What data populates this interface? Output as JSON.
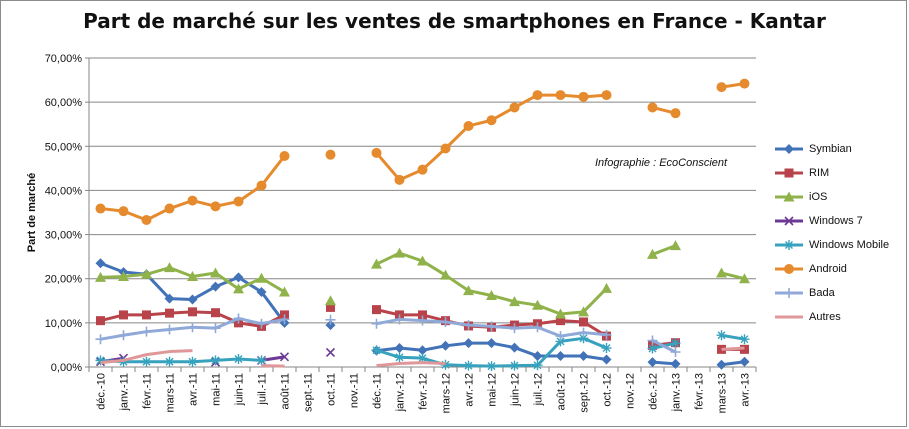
{
  "chart_data": {
    "type": "line",
    "title": "Part de marché sur les ventes de smartphones en France - Kantar",
    "xlabel": "",
    "ylabel": "Part de marché",
    "annotation": "Infographie : EcoConscient",
    "ylim": [
      0,
      70
    ],
    "yticks": [
      "0,00%",
      "10,00%",
      "20,00%",
      "30,00%",
      "40,00%",
      "50,00%",
      "60,00%",
      "70,00%"
    ],
    "grid": true,
    "legend_position": "right",
    "categories": [
      "déc.-10",
      "janv.-11",
      "févr.-11",
      "mars-11",
      "avr.-11",
      "mai-11",
      "juin-11",
      "juil.-11",
      "août-11",
      "sept.-11",
      "oct.-11",
      "nov.-11",
      "déc.-11",
      "janv.-12",
      "févr.-12",
      "mars-12",
      "avr.-12",
      "mai-12",
      "juin-12",
      "juil.-12",
      "août-12",
      "sept.-12",
      "oct.-12",
      "nov.-12",
      "déc.-12",
      "janv.-13",
      "févr.-13",
      "mars-13",
      "avr.-13"
    ],
    "series": [
      {
        "name": "Symbian",
        "color": "#4272b8",
        "marker": "diamond",
        "values": [
          23.5,
          21.5,
          21,
          15.5,
          15.3,
          18.2,
          20.3,
          17,
          10,
          null,
          9.5,
          null,
          3.7,
          4.3,
          3.8,
          4.8,
          5.4,
          5.4,
          4.4,
          2.5,
          2.5,
          2.5,
          1.7,
          null,
          1.1,
          0.7,
          null,
          0.5,
          1.2
        ]
      },
      {
        "name": "RIM",
        "color": "#b8434a",
        "marker": "square",
        "values": [
          10.5,
          11.8,
          11.8,
          12.2,
          12.5,
          12.3,
          10,
          9.2,
          11.8,
          null,
          13.5,
          null,
          13,
          11.8,
          11.8,
          10.5,
          9.3,
          9,
          9.5,
          9.8,
          10.5,
          10.2,
          7,
          null,
          4.9,
          5.5,
          null,
          4,
          4
        ]
      },
      {
        "name": "iOS",
        "color": "#8fb34a",
        "marker": "triangle",
        "values": [
          20.3,
          20.5,
          21,
          22.5,
          20.5,
          21.3,
          17.7,
          20.1,
          17,
          null,
          15,
          null,
          23.3,
          25.8,
          24,
          20.8,
          17.3,
          16.2,
          14.8,
          14,
          12,
          12.5,
          17.8,
          null,
          25.5,
          27.5,
          null,
          21.3,
          20
        ]
      },
      {
        "name": "Windows 7",
        "color": "#6c3a94",
        "marker": "x",
        "values": [
          1.2,
          2,
          null,
          null,
          null,
          1.1,
          null,
          1.5,
          2.3,
          null,
          3.3,
          null,
          null,
          null,
          null,
          null,
          null,
          null,
          null,
          null,
          null,
          null,
          null,
          null,
          null,
          null,
          null,
          null,
          null
        ]
      },
      {
        "name": "Windows Mobile",
        "color": "#37a2bd",
        "marker": "star",
        "values": [
          1.5,
          1.2,
          1.2,
          1.2,
          1.2,
          1.5,
          1.8,
          1.5,
          null,
          null,
          null,
          null,
          3.8,
          2.2,
          2,
          0.5,
          0.3,
          0.2,
          0.3,
          0.4,
          5.8,
          6.5,
          4.3,
          null,
          4.2,
          5.4,
          null,
          7.2,
          6.3
        ]
      },
      {
        "name": "Android",
        "color": "#e68a2e",
        "marker": "circle",
        "values": [
          35.9,
          35.3,
          33.3,
          35.9,
          37.7,
          36.4,
          37.5,
          41.1,
          47.8,
          null,
          48.1,
          null,
          48.5,
          42.4,
          44.7,
          49.5,
          54.6,
          55.9,
          58.8,
          61.6,
          61.6,
          61.2,
          61.6,
          null,
          58.8,
          57.5,
          null,
          63.4,
          64.2
        ]
      },
      {
        "name": "Bada",
        "color": "#8fa9d8",
        "marker": "plus",
        "values": [
          6.3,
          7.2,
          8,
          8.5,
          9,
          8.8,
          11,
          9.8,
          10.8,
          null,
          10.7,
          null,
          9.8,
          10.8,
          10.5,
          10.2,
          9.5,
          9.2,
          8.8,
          9,
          7,
          7.8,
          7.3,
          null,
          6,
          3.4,
          null,
          null,
          null
        ]
      },
      {
        "name": "Autres",
        "color": "#e0979a",
        "marker": "none",
        "values": [
          1,
          1.5,
          2.8,
          3.5,
          3.7,
          null,
          null,
          0.3,
          0.2,
          null,
          0.3,
          null,
          0.3,
          0.8,
          1,
          0.8,
          null,
          null,
          null,
          1.5,
          null,
          null,
          null,
          null,
          null,
          0.5,
          null,
          4,
          4.3
        ]
      }
    ]
  }
}
